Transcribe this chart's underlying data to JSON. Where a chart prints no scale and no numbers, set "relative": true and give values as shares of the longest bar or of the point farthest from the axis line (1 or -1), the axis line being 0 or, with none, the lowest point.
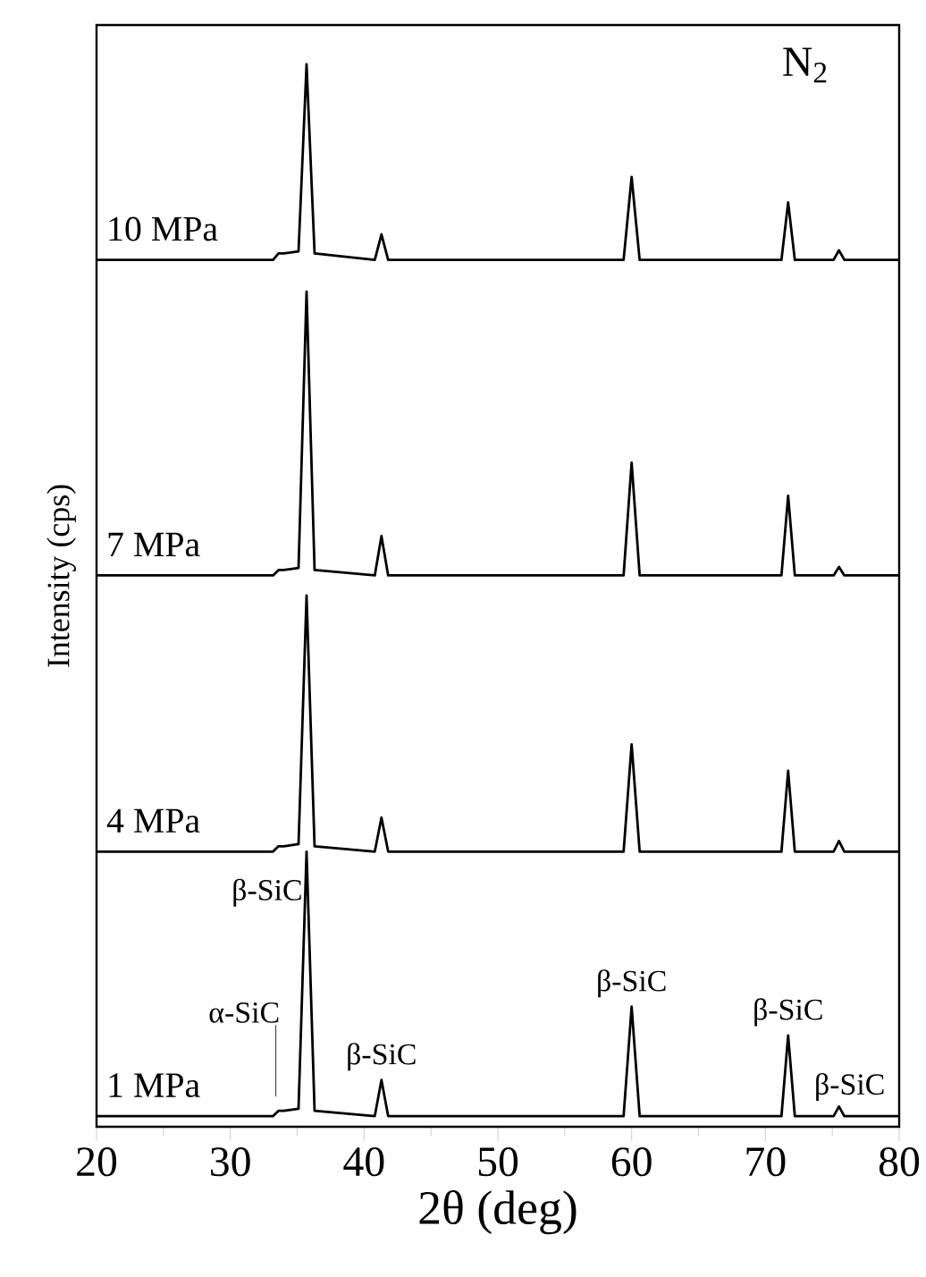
{
  "chart_data": {
    "type": "line",
    "relative": true,
    "xlabel": "2θ (deg)",
    "ylabel": "Intensity (cps)",
    "xlim": [
      20,
      80
    ],
    "xticks": [
      20,
      30,
      40,
      50,
      60,
      70,
      80
    ],
    "x": [
      20,
      33.2,
      33.6,
      34.0,
      35.1,
      35.7,
      36.3,
      40.8,
      41.3,
      41.8,
      59.4,
      60.0,
      60.6,
      71.2,
      71.7,
      72.2,
      75.1,
      75.5,
      75.9,
      80
    ],
    "series": [
      {
        "name": "1 MPa",
        "color": "#000000",
        "values": [
          0.01,
          0.01,
          0.015,
          0.015,
          0.017,
          0.259,
          0.015,
          0.01,
          0.044,
          0.01,
          0.01,
          0.113,
          0.01,
          0.01,
          0.086,
          0.01,
          0.01,
          0.019,
          0.01,
          0.01
        ]
      },
      {
        "name": "4 MPa",
        "color": "#000000",
        "values": [
          0.259,
          0.259,
          0.264,
          0.264,
          0.266,
          0.5,
          0.264,
          0.259,
          0.291,
          0.259,
          0.259,
          0.36,
          0.259,
          0.259,
          0.335,
          0.259,
          0.259,
          0.269,
          0.259,
          0.259
        ]
      },
      {
        "name": "7 MPa",
        "color": "#000000",
        "values": [
          0.519,
          0.519,
          0.524,
          0.524,
          0.526,
          0.786,
          0.524,
          0.519,
          0.556,
          0.519,
          0.519,
          0.625,
          0.519,
          0.519,
          0.594,
          0.519,
          0.519,
          0.527,
          0.519,
          0.519
        ]
      },
      {
        "name": "10 MPa",
        "color": "#000000",
        "values": [
          0.816,
          0.816,
          0.822,
          0.822,
          0.824,
          1.0,
          0.822,
          0.816,
          0.84,
          0.816,
          0.816,
          0.894,
          0.816,
          0.816,
          0.87,
          0.816,
          0.816,
          0.825,
          0.816,
          0.816
        ]
      }
    ],
    "annotations": [
      {
        "text": "α-SiC",
        "x": 33.6,
        "y": 0.015
      },
      {
        "text": "β-SiC",
        "x": 35.7,
        "y": 0.259
      },
      {
        "text": "β-SiC",
        "x": 41.3,
        "y": 0.044
      },
      {
        "text": "β-SiC",
        "x": 60.0,
        "y": 0.113
      },
      {
        "text": "β-SiC",
        "x": 71.7,
        "y": 0.086
      },
      {
        "text": "β-SiC",
        "x": 75.5,
        "y": 0.019
      },
      "N$_{2}$"
    ],
    "line_style": "solid"
  }
}
